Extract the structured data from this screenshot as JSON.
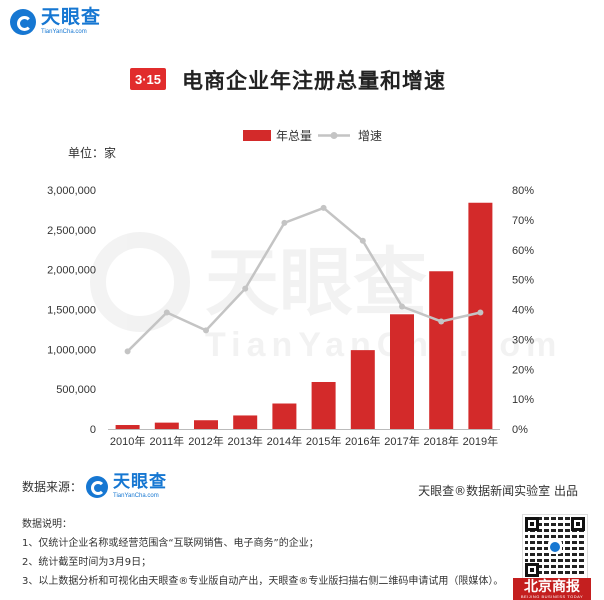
{
  "brand": {
    "name": "天眼查",
    "domain": "TianYanCha.com",
    "watermark": "天眼查",
    "watermark_sub": "TianYanCha.com"
  },
  "badge": "3·15",
  "title": "电商企业年注册总量和增速",
  "unit": "单位：家",
  "footer": {
    "source_label": "数据来源：",
    "credit": "天眼查®数据新闻实验室 出品",
    "notes_title": "数据说明：",
    "notes": [
      "1、仅统计企业名称或经营范围含“互联网销售、电子商务”的企业；",
      "2、统计截至时间为3月9日；",
      "3、以上数据分析和可视化由天眼查®专业版自动产出，天眼查®专业版扫描右侧二维码申请试用（限媒体）。"
    ],
    "paper_name": "北京商报",
    "paper_en": "BEIJING BUSINESS TODAY"
  },
  "colors": {
    "bar": "#d32a2a",
    "line": "#c4c4c4",
    "brand_blue": "#1677d2",
    "badge": "#e12c2c"
  },
  "chart_data": {
    "type": "bar",
    "title": "电商企业年注册总量和增速",
    "categories": [
      "2010年",
      "2011年",
      "2012年",
      "2013年",
      "2014年",
      "2015年",
      "2016年",
      "2017年",
      "2018年",
      "2019年"
    ],
    "series": [
      {
        "name": "年总量",
        "type": "bar",
        "axis": "left",
        "values": [
          50000,
          80000,
          110000,
          170000,
          320000,
          590000,
          990000,
          1440000,
          1980000,
          2840000
        ]
      },
      {
        "name": "增速",
        "type": "line",
        "axis": "right",
        "values": [
          0.26,
          0.39,
          0.33,
          0.47,
          0.69,
          0.74,
          0.63,
          0.41,
          0.36,
          0.39
        ]
      }
    ],
    "y_left": {
      "min": 0,
      "max": 3000000,
      "ticks": [
        "0",
        "500,000",
        "1,000,000",
        "1,500,000",
        "2,000,000",
        "2,500,000",
        "3,000,000"
      ]
    },
    "y_right": {
      "min": 0,
      "max": 0.8,
      "ticks": [
        "0%",
        "10%",
        "20%",
        "30%",
        "40%",
        "50%",
        "60%",
        "70%",
        "80%"
      ]
    },
    "legend": "top-center",
    "grid": false
  }
}
